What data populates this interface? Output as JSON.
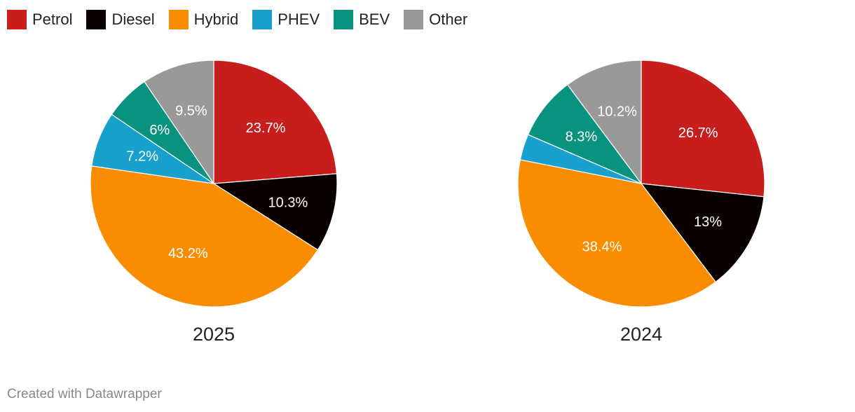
{
  "legend": [
    {
      "label": "Petrol",
      "color": "#c71e1d"
    },
    {
      "label": "Diesel",
      "color": "#0a0000"
    },
    {
      "label": "Hybrid",
      "color": "#fa8c00"
    },
    {
      "label": "PHEV",
      "color": "#18a1cd"
    },
    {
      "label": "BEV",
      "color": "#09937e"
    },
    {
      "label": "Other",
      "color": "#999999"
    }
  ],
  "chart_data": [
    {
      "type": "pie",
      "title": "2025",
      "categories": [
        "Petrol",
        "Diesel",
        "Hybrid",
        "PHEV",
        "BEV",
        "Other"
      ],
      "values": [
        23.7,
        10.3,
        43.2,
        7.2,
        6,
        9.5
      ],
      "labels": [
        "23.7%",
        "10.3%",
        "43.2%",
        "7.2%",
        "6%",
        "9.5%"
      ]
    },
    {
      "type": "pie",
      "title": "2024",
      "categories": [
        "Petrol",
        "Diesel",
        "Hybrid",
        "PHEV",
        "BEV",
        "Other"
      ],
      "values": [
        26.7,
        13,
        38.4,
        3.4,
        8.3,
        10.2
      ],
      "labels": [
        "26.7%",
        "13%",
        "38.4%",
        "",
        "8.3%",
        "10.2%"
      ]
    }
  ],
  "footer": {
    "credit": "Created with Datawrapper"
  }
}
